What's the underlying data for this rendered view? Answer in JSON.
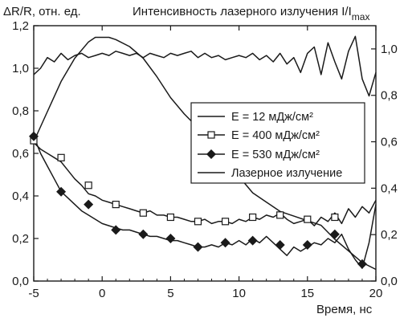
{
  "chart_data": {
    "type": "line",
    "ylabel_left": "ΔR/R, отн. ед.",
    "ylabel_right": "Интенсивность лазерного излучения I/I",
    "ylabel_right_sub": "max",
    "xlabel": "Время, нс",
    "xlim": [
      -5,
      20
    ],
    "ylim_left": [
      0,
      1.2
    ],
    "ylim_right": [
      0,
      1.1
    ],
    "x_ticks": [
      "-5",
      "0",
      "5",
      "10",
      "15",
      "20"
    ],
    "y_ticks_left": [
      "0,0",
      "0,2",
      "0,4",
      "0,6",
      "0,8",
      "1,0",
      "1,2"
    ],
    "y_ticks_right": [
      "0,0",
      "0,2",
      "0,4",
      "0,6",
      "0,8",
      "1,0"
    ],
    "legend": [
      {
        "label": "E = 12 мДж/см²",
        "marker": "none"
      },
      {
        "label": "E = 400 мДж/см²",
        "marker": "open-square"
      },
      {
        "label": "E = 530 мДж/см²",
        "marker": "filled-diamond"
      },
      {
        "label": "Лазерное излучение",
        "marker": "none"
      }
    ],
    "series": [
      {
        "name": "E = 12 мДж/см²",
        "axis": "left",
        "x": [
          -5,
          -4.5,
          -4,
          -3.5,
          -3,
          -2.5,
          -2,
          -1.5,
          -1,
          -0.5,
          0,
          0.5,
          1,
          1.5,
          2,
          2.5,
          3,
          3.5,
          4,
          4.5,
          5,
          5.5,
          6,
          6.5,
          7,
          7.5,
          8,
          8.5,
          9,
          9.5,
          10,
          10.5,
          11,
          11.5,
          12,
          12.5,
          13,
          13.5,
          14,
          14.5,
          15,
          15.5,
          16,
          16.5,
          17,
          17.5,
          18,
          18.5,
          19,
          19.5,
          20
        ],
        "y": [
          0.97,
          1.0,
          1.05,
          1.03,
          1.07,
          1.04,
          1.06,
          1.07,
          1.05,
          1.06,
          1.07,
          1.06,
          1.08,
          1.07,
          1.06,
          1.07,
          1.05,
          1.07,
          1.06,
          1.05,
          1.07,
          1.06,
          1.07,
          1.08,
          1.05,
          1.07,
          1.05,
          1.06,
          1.04,
          1.05,
          1.06,
          1.05,
          1.07,
          1.04,
          1.06,
          1.03,
          1.07,
          1.02,
          1.05,
          0.98,
          1.07,
          1.1,
          0.97,
          1.12,
          1.03,
          0.95,
          1.08,
          1.15,
          0.95,
          0.87,
          0.98
        ]
      },
      {
        "name": "E = 400 мДж/см²",
        "axis": "left",
        "x": [
          -5,
          -4.5,
          -4,
          -3.5,
          -3,
          -2.5,
          -2,
          -1.5,
          -1,
          -0.5,
          0,
          0.5,
          1,
          1.5,
          2,
          2.5,
          3,
          3.5,
          4,
          4.5,
          5,
          5.5,
          6,
          6.5,
          7,
          7.5,
          8,
          8.5,
          9,
          9.5,
          10,
          10.5,
          11,
          11.5,
          12,
          12.5,
          13,
          13.5,
          14,
          14.5,
          15,
          15.5,
          16,
          16.5,
          17,
          17.5,
          18,
          18.5,
          19,
          19.5,
          20
        ],
        "y": [
          0.65,
          0.62,
          0.6,
          0.58,
          0.56,
          0.52,
          0.48,
          0.45,
          0.41,
          0.4,
          0.38,
          0.37,
          0.36,
          0.35,
          0.34,
          0.33,
          0.32,
          0.33,
          0.31,
          0.31,
          0.3,
          0.3,
          0.29,
          0.28,
          0.28,
          0.29,
          0.27,
          0.28,
          0.28,
          0.27,
          0.29,
          0.28,
          0.3,
          0.29,
          0.31,
          0.3,
          0.32,
          0.29,
          0.27,
          0.28,
          0.29,
          0.26,
          0.3,
          0.28,
          0.32,
          0.27,
          0.34,
          0.3,
          0.35,
          0.32,
          0.38
        ]
      },
      {
        "name": "E = 530 мДж/см²",
        "axis": "left",
        "x": [
          -5,
          -4.5,
          -4,
          -3.5,
          -3,
          -2.5,
          -2,
          -1.5,
          -1,
          -0.5,
          0,
          0.5,
          1,
          1.5,
          2,
          2.5,
          3,
          3.5,
          4,
          4.5,
          5,
          5.5,
          6,
          6.5,
          7,
          7.5,
          8,
          8.5,
          9,
          9.5,
          10,
          10.5,
          11,
          11.5,
          12,
          12.5,
          13,
          13.5,
          14,
          14.5,
          15,
          15.5,
          16,
          16.5,
          17,
          17.5,
          18,
          18.5,
          19,
          19.5,
          20
        ],
        "y": [
          0.68,
          0.6,
          0.54,
          0.48,
          0.42,
          0.39,
          0.36,
          0.33,
          0.31,
          0.29,
          0.27,
          0.26,
          0.25,
          0.24,
          0.24,
          0.23,
          0.22,
          0.21,
          0.21,
          0.2,
          0.19,
          0.19,
          0.18,
          0.17,
          0.16,
          0.16,
          0.17,
          0.16,
          0.18,
          0.17,
          0.19,
          0.17,
          0.2,
          0.18,
          0.21,
          0.18,
          0.15,
          0.12,
          0.16,
          0.14,
          0.16,
          0.18,
          0.17,
          0.2,
          0.18,
          0.22,
          0.15,
          0.1,
          0.06,
          0.18,
          0.36
        ]
      },
      {
        "name": "Лазерное излучение",
        "axis": "right",
        "x": [
          -5,
          -4,
          -3,
          -2,
          -1,
          -0.5,
          0,
          0.5,
          1,
          2,
          3,
          4,
          5,
          6,
          7,
          8,
          9,
          10,
          11,
          12,
          13,
          14,
          15,
          16,
          17,
          18,
          19,
          20
        ],
        "y": [
          0.6,
          0.73,
          0.86,
          0.96,
          1.03,
          1.05,
          1.05,
          1.05,
          1.04,
          1.01,
          0.96,
          0.88,
          0.79,
          0.72,
          0.66,
          0.59,
          0.52,
          0.45,
          0.38,
          0.34,
          0.3,
          0.28,
          0.26,
          0.24,
          0.18,
          0.13,
          0.08,
          0.05
        ]
      }
    ],
    "markers_400": {
      "x": [
        -5,
        -3,
        -1,
        1,
        3,
        5,
        7,
        9,
        11,
        13,
        15,
        17
      ],
      "y": [
        0.66,
        0.58,
        0.45,
        0.36,
        0.32,
        0.3,
        0.28,
        0.28,
        0.3,
        0.31,
        0.29,
        0.3
      ]
    },
    "markers_530": {
      "x": [
        -5,
        -3,
        -1,
        1,
        3,
        5,
        7,
        9,
        11,
        13,
        15,
        17,
        19
      ],
      "y": [
        0.68,
        0.42,
        0.36,
        0.24,
        0.22,
        0.2,
        0.16,
        0.18,
        0.19,
        0.17,
        0.17,
        0.22,
        0.08
      ]
    }
  }
}
